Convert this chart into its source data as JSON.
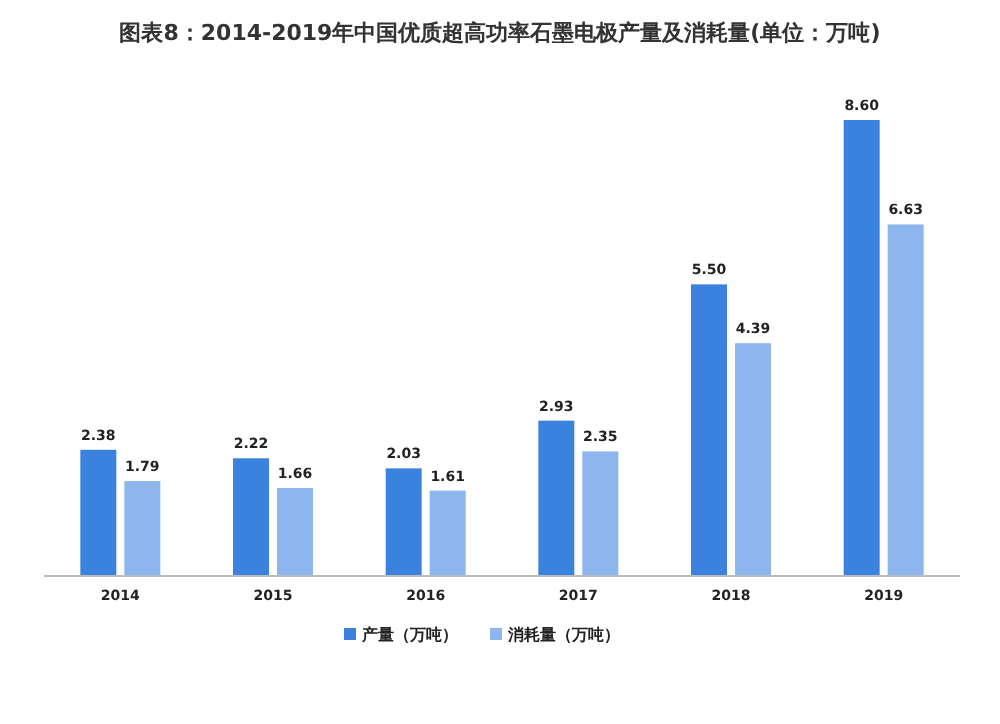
{
  "chart_data": {
    "type": "bar",
    "title": "图表8：2014-2019年中国优质超高功率石墨电极产量及消耗量(单位：万吨)",
    "categories": [
      "2014",
      "2015",
      "2016",
      "2017",
      "2018",
      "2019"
    ],
    "series": [
      {
        "name": "产量（万吨）",
        "color": "#3b82de",
        "values": [
          2.38,
          2.22,
          2.03,
          2.93,
          5.5,
          8.6
        ],
        "value_labels": [
          "2.38",
          "2.22",
          "2.03",
          "2.93",
          "5.50",
          "8.60"
        ]
      },
      {
        "name": "消耗量（万吨）",
        "color": "#8db6ee",
        "values": [
          1.79,
          1.66,
          1.61,
          2.35,
          4.39,
          6.63
        ],
        "value_labels": [
          "1.79",
          "1.66",
          "1.61",
          "2.35",
          "4.39",
          "6.63"
        ]
      }
    ],
    "legend": "bottom",
    "grid": false
  }
}
